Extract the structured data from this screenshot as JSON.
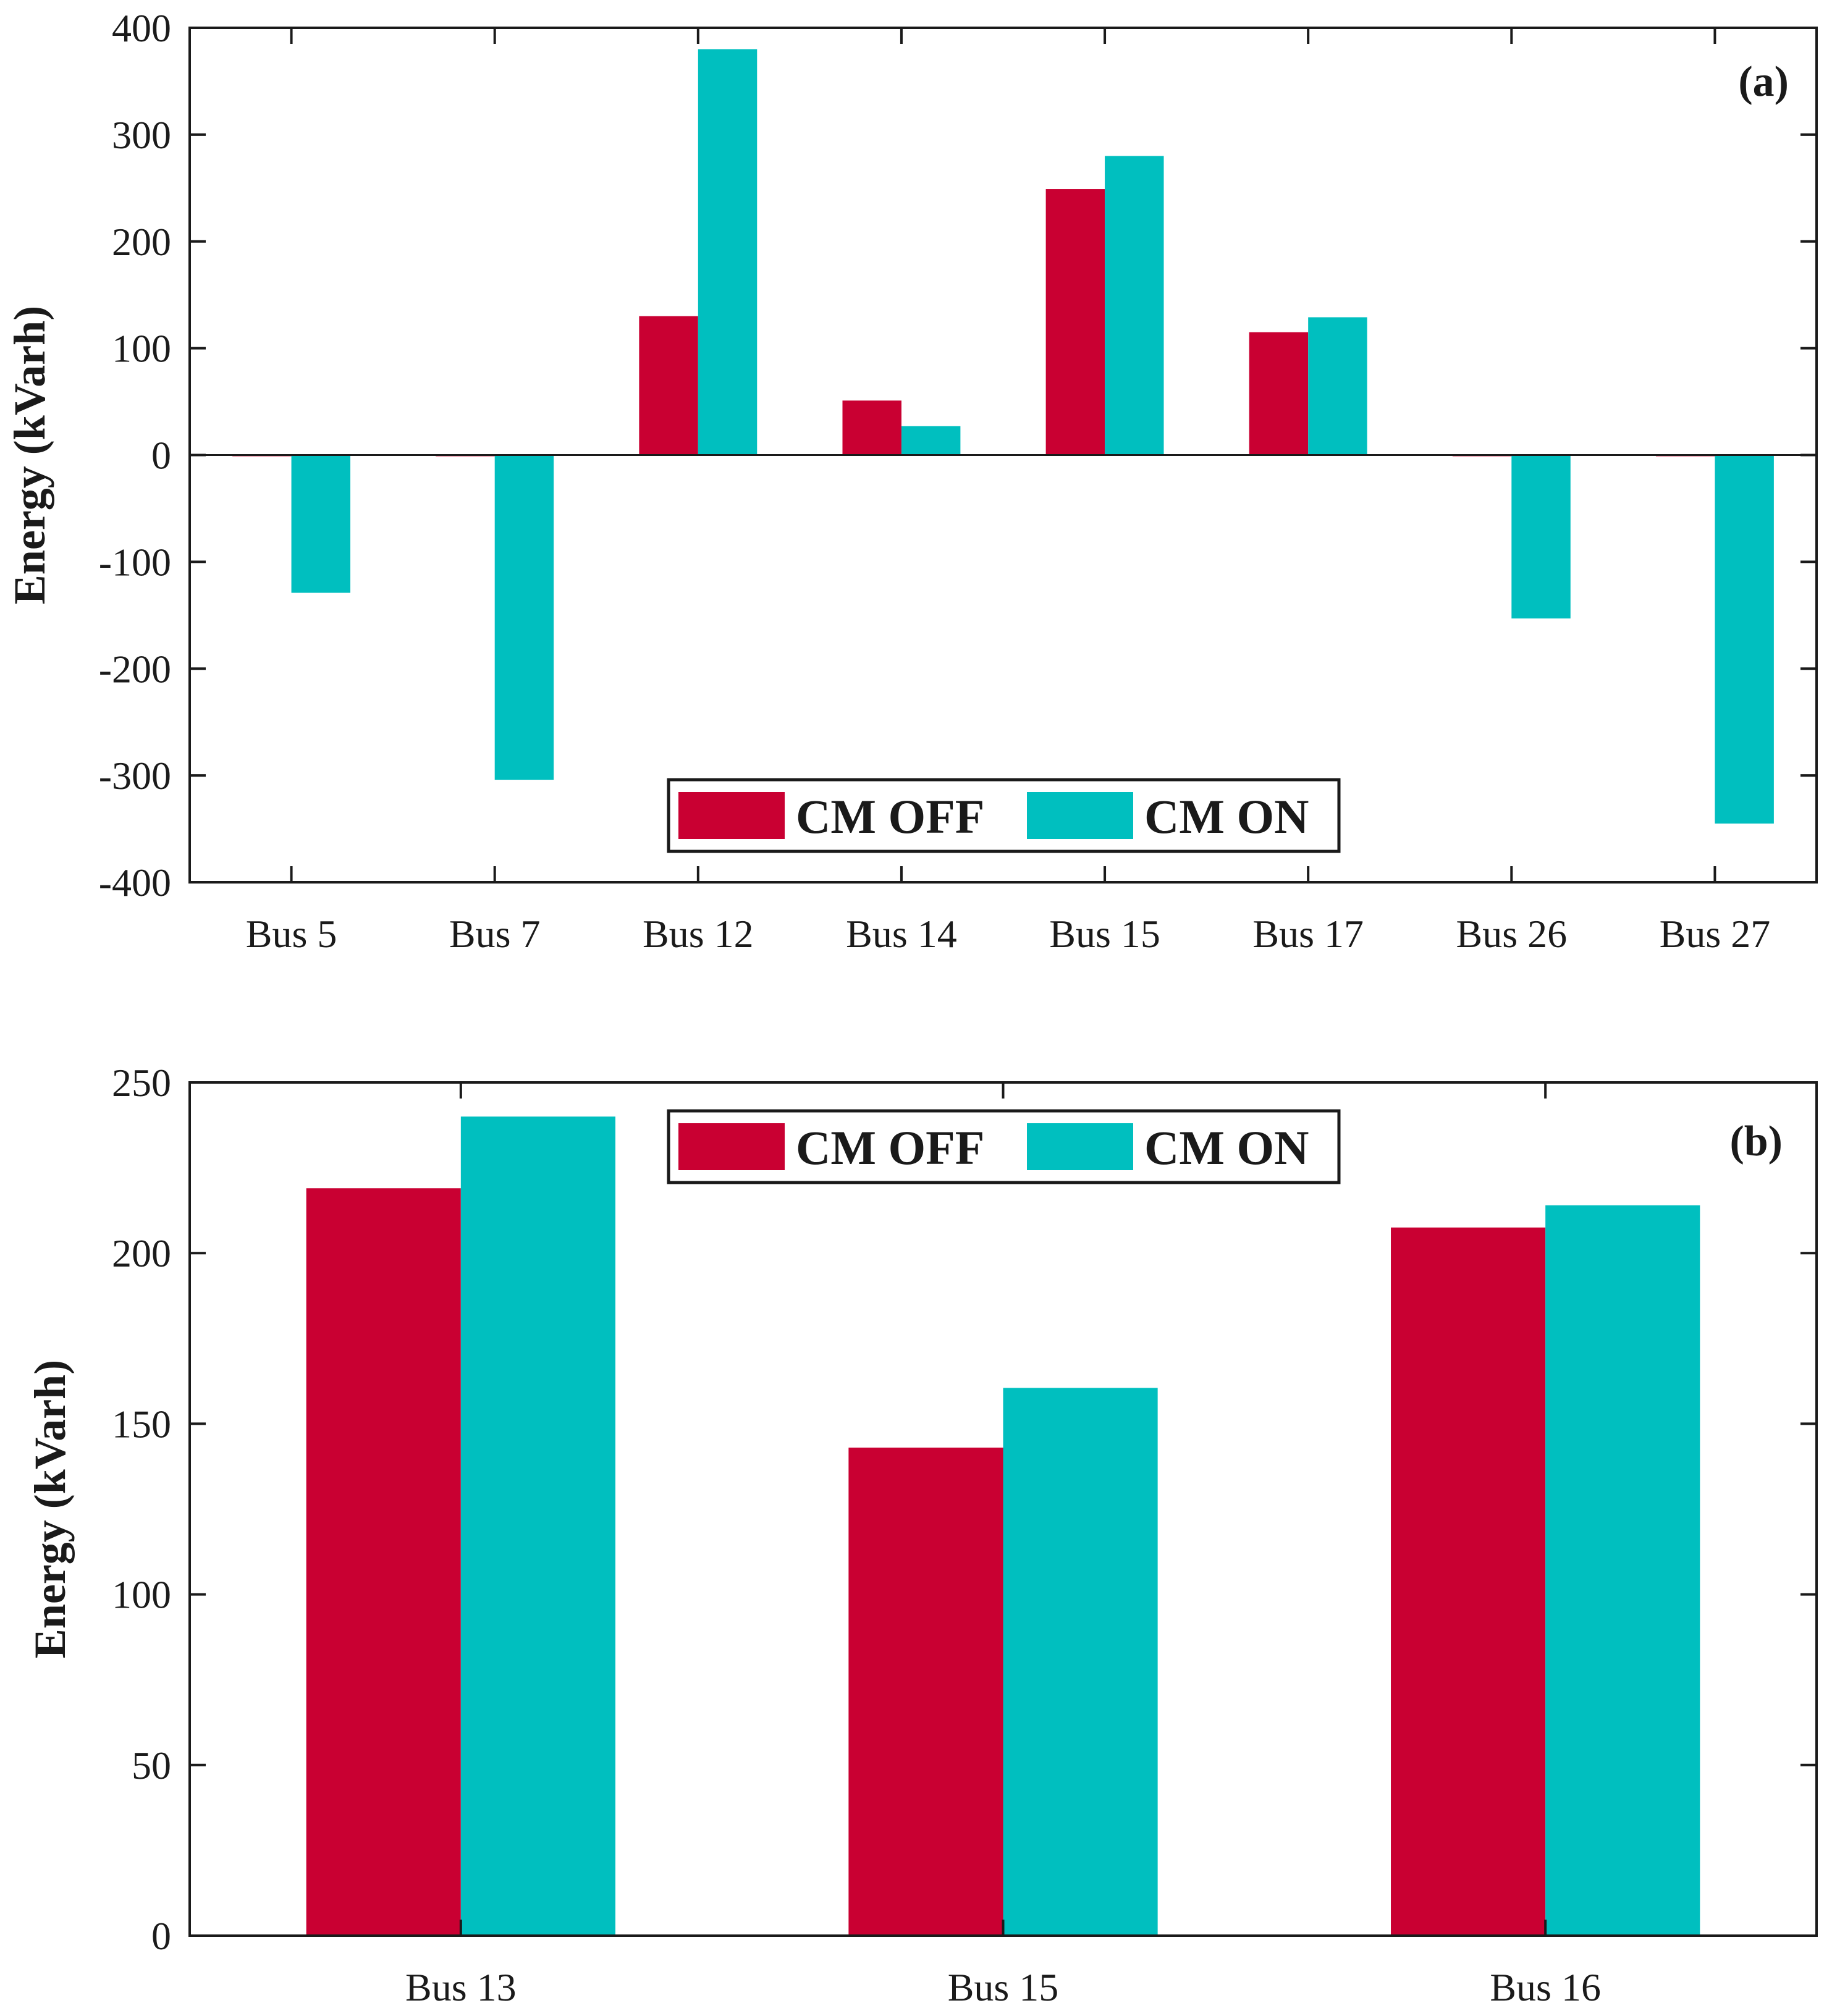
{
  "colors": {
    "off": "#c90032",
    "on": "#00bfbf",
    "axis": "#1a1a1a"
  },
  "chart_data": [
    {
      "type": "bar",
      "panel_label": "(a)",
      "ylabel": "Energy (kVarh)",
      "xlabel": "",
      "ylim": [
        -400,
        400
      ],
      "yticks": [
        400,
        300,
        200,
        100,
        0,
        -100,
        -200,
        -300,
        -400
      ],
      "ytick_labels": [
        "400",
        "300",
        "200",
        "100",
        "0",
        "-100",
        "-200",
        "-300",
        "-400"
      ],
      "categories": [
        "Bus 5",
        "Bus 7",
        "Bus 12",
        "Bus 14",
        "Bus 15",
        "Bus 17",
        "Bus 26",
        "Bus 27"
      ],
      "series": [
        {
          "name": "CM OFF",
          "values": [
            0,
            0,
            130,
            51,
            249,
            115,
            0,
            0
          ]
        },
        {
          "name": "CM ON",
          "values": [
            -129,
            -304,
            380,
            27,
            280,
            129,
            -153,
            -345
          ]
        }
      ],
      "legend": {
        "position": "bottom-center",
        "entries": [
          "CM OFF",
          "CM ON"
        ]
      },
      "grid": false
    },
    {
      "type": "bar",
      "panel_label": "(b)",
      "ylabel": "Energy (kVarh)",
      "xlabel": "",
      "ylim": [
        0,
        250
      ],
      "yticks": [
        250,
        200,
        150,
        100,
        50,
        0
      ],
      "ytick_labels": [
        "250",
        "200",
        "150",
        "100",
        "50",
        "0"
      ],
      "categories": [
        "Bus 13",
        "Bus 15",
        "Bus 16"
      ],
      "series": [
        {
          "name": "CM OFF",
          "values": [
            219,
            143,
            207.5
          ]
        },
        {
          "name": "CM ON",
          "values": [
            240,
            160.5,
            214
          ]
        }
      ],
      "legend": {
        "position": "top-center",
        "entries": [
          "CM OFF",
          "CM ON"
        ]
      },
      "grid": false
    }
  ]
}
